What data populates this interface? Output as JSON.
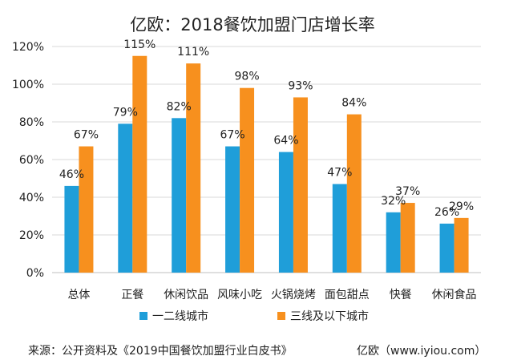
{
  "chart_data": {
    "type": "bar",
    "title": "亿欧：2018餐饮加盟门店增长率",
    "categories": [
      "总体",
      "正餐",
      "休闲饮品",
      "风味小吃",
      "火锅烧烤",
      "面包甜点",
      "快餐",
      "休闲食品"
    ],
    "series": [
      {
        "name": "一二线城市",
        "values": [
          46,
          79,
          82,
          67,
          64,
          47,
          32,
          26
        ],
        "labels": [
          "46%",
          "79%",
          "82%",
          "67%",
          "64%",
          "47%",
          "32%",
          "26%"
        ],
        "color": "#1f9ed9"
      },
      {
        "name": "三线及以下城市",
        "values": [
          67,
          115,
          111,
          98,
          93,
          84,
          37,
          29
        ],
        "labels": [
          "67%",
          "115%",
          "111%",
          "98%",
          "93%",
          "84%",
          "37%",
          "29%"
        ],
        "color": "#f7901e"
      }
    ],
    "ylim": [
      0,
      120
    ],
    "yticks": [
      "0%",
      "20%",
      "40%",
      "60%",
      "80%",
      "100%",
      "120%"
    ],
    "grid": true,
    "legend": "bottom"
  },
  "footer": {
    "source": "来源：公开资料及《2019中国餐饮加盟行业白皮书》",
    "brand": "亿欧（www.iyiou.com）"
  }
}
